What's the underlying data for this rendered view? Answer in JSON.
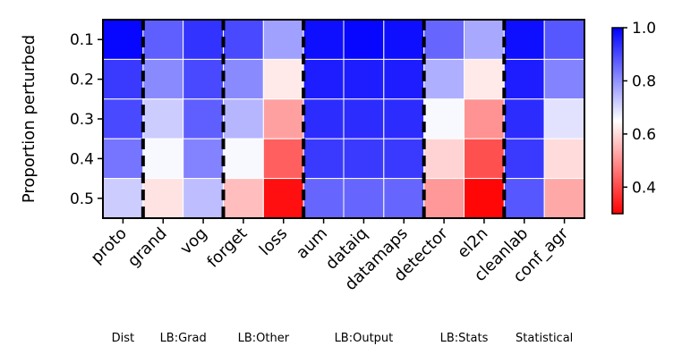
{
  "chart_data": {
    "type": "heatmap",
    "title": "",
    "ylabel": "Proportion perturbed",
    "xlabel": "",
    "x_categories": [
      "proto",
      "grand",
      "vog",
      "forget",
      "loss",
      "aum",
      "dataiq",
      "datamaps",
      "detector",
      "el2n",
      "cleanlab",
      "conf_agr"
    ],
    "y_categories": [
      "0.1",
      "0.2",
      "0.3",
      "0.4",
      "0.5"
    ],
    "values": [
      [
        0.99,
        0.87,
        0.93,
        0.9,
        0.78,
        0.98,
        0.99,
        0.98,
        0.86,
        0.77,
        0.98,
        0.88
      ],
      [
        0.92,
        0.81,
        0.9,
        0.81,
        0.62,
        0.96,
        0.96,
        0.96,
        0.76,
        0.62,
        0.96,
        0.82
      ],
      [
        0.9,
        0.72,
        0.87,
        0.75,
        0.52,
        0.94,
        0.94,
        0.94,
        0.66,
        0.5,
        0.94,
        0.69
      ],
      [
        0.84,
        0.66,
        0.82,
        0.66,
        0.43,
        0.92,
        0.92,
        0.92,
        0.59,
        0.41,
        0.92,
        0.6
      ],
      [
        0.72,
        0.61,
        0.74,
        0.56,
        0.32,
        0.86,
        0.86,
        0.86,
        0.51,
        0.31,
        0.88,
        0.53
      ]
    ],
    "color_range": [
      0.3,
      1.0
    ],
    "colormap": [
      "#ff0000",
      "#ffffff",
      "#0000ff"
    ],
    "colorbar_ticks": [
      "0.4",
      "0.6",
      "0.8",
      "1.0"
    ],
    "group_dividers_after": [
      0,
      2,
      4,
      7,
      9
    ],
    "groups": [
      {
        "label": "Dist",
        "span": [
          0,
          0
        ]
      },
      {
        "label": "LB:Grad",
        "span": [
          1,
          2
        ]
      },
      {
        "label": "LB:Other",
        "span": [
          3,
          4
        ]
      },
      {
        "label": "LB:Output",
        "span": [
          5,
          7
        ]
      },
      {
        "label": "LB:Stats",
        "span": [
          8,
          9
        ]
      },
      {
        "label": "Statistical",
        "span": [
          10,
          11
        ]
      }
    ],
    "grid": false
  }
}
